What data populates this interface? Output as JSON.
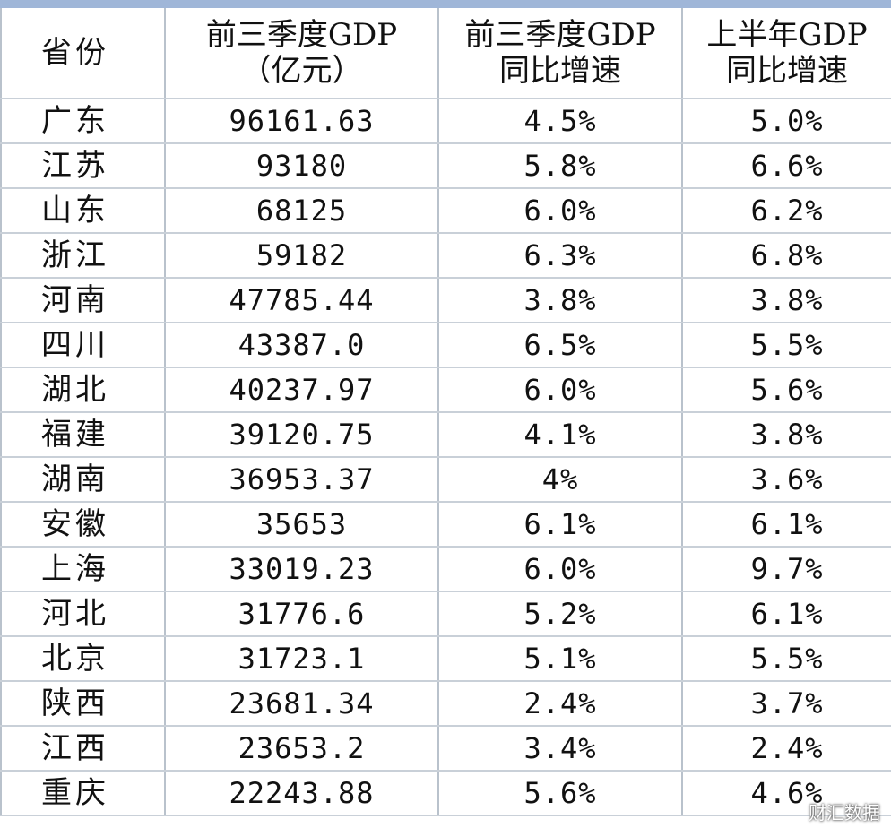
{
  "table": {
    "headers": [
      {
        "line1": "省份",
        "line2": ""
      },
      {
        "line1": "前三季度GDP",
        "line2": "（亿元）"
      },
      {
        "line1": "前三季度GDP",
        "line2": "同比增速"
      },
      {
        "line1": "上半年GDP",
        "line2": "同比增速"
      }
    ],
    "rows": [
      [
        "广东",
        "96161.63",
        "4.5%",
        "5.0%"
      ],
      [
        "江苏",
        "93180",
        "5.8%",
        "6.6%"
      ],
      [
        "山东",
        "68125",
        "6.0%",
        "6.2%"
      ],
      [
        "浙江",
        "59182",
        "6.3%",
        "6.8%"
      ],
      [
        "河南",
        "47785.44",
        "3.8%",
        "3.8%"
      ],
      [
        "四川",
        "43387.0",
        "6.5%",
        "5.5%"
      ],
      [
        "湖北",
        "40237.97",
        "6.0%",
        "5.6%"
      ],
      [
        "福建",
        "39120.75",
        "4.1%",
        "3.8%"
      ],
      [
        "湖南",
        "36953.37",
        "4%",
        "3.6%"
      ],
      [
        "安徽",
        "35653",
        "6.1%",
        "6.1%"
      ],
      [
        "上海",
        "33019.23",
        "6.0%",
        "9.7%"
      ],
      [
        "河北",
        "31776.6",
        "5.2%",
        "6.1%"
      ],
      [
        "北京",
        "31723.1",
        "5.1%",
        "5.5%"
      ],
      [
        "陕西",
        "23681.34",
        "2.4%",
        "3.7%"
      ],
      [
        "江西",
        "23653.2",
        "3.4%",
        "2.4%"
      ],
      [
        "重庆",
        "22243.88",
        "5.6%",
        "4.6%"
      ]
    ]
  },
  "watermark": "财汇数据",
  "colors": {
    "top_bar": "#9fb6d8",
    "grid": "#c9d0d8"
  }
}
